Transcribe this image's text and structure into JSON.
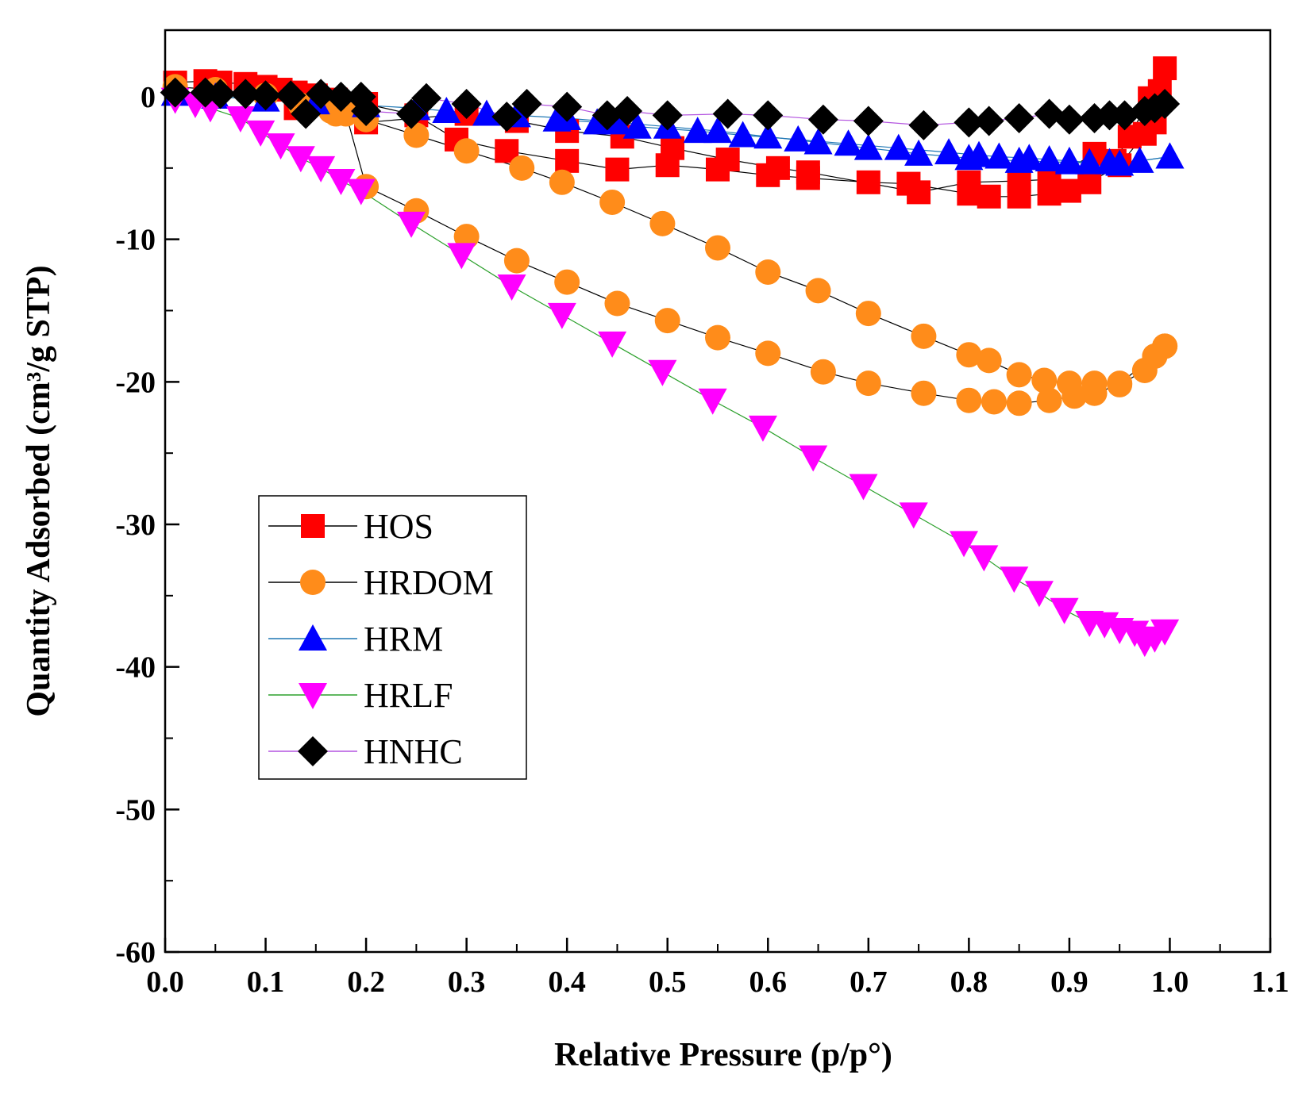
{
  "chart_data": {
    "type": "scatter",
    "title": "",
    "xlabel": "Relative Pressure (p/p°)",
    "ylabel": "Quantity Adsorbed (cm³/g STP)",
    "xlim": [
      0.0,
      1.1
    ],
    "ylim": [
      -60,
      5
    ],
    "x_ticks": [
      0.0,
      0.1,
      0.2,
      0.3,
      0.4,
      0.5,
      0.6,
      0.7,
      0.8,
      0.9,
      1.0,
      1.1
    ],
    "x_tick_labels": [
      "0.0",
      "0.1",
      "0.2",
      "0.3",
      "0.4",
      "0.5",
      "0.6",
      "0.7",
      "0.8",
      "0.9",
      "1.0",
      "1.1"
    ],
    "y_ticks": [
      0,
      -10,
      -20,
      -30,
      -40,
      -50,
      -60
    ],
    "y_tick_labels": [
      "0",
      "-10",
      "-20",
      "-30",
      "-40",
      "-50",
      "-60"
    ],
    "grid": false,
    "legend_position": "lower-left",
    "series": [
      {
        "name": "HOS",
        "marker": "square",
        "color": "#ff0000",
        "line_color": "#000000",
        "adsorption": {
          "x": [
            0.01,
            0.04,
            0.055,
            0.08,
            0.1,
            0.115,
            0.13,
            0.15,
            0.17,
            0.2,
            0.25,
            0.29,
            0.34,
            0.4,
            0.45,
            0.5,
            0.55,
            0.6,
            0.64,
            0.7,
            0.74,
            0.8,
            0.82,
            0.85,
            0.88,
            0.9,
            0.92,
            0.95,
            0.975,
            0.985,
            0.995
          ],
          "y": [
            1.0,
            1.1,
            1.0,
            0.9,
            0.7,
            0.5,
            0.3,
            0.1,
            -0.2,
            -0.5,
            -1.3,
            -3.0,
            -3.8,
            -4.5,
            -5.1,
            -4.8,
            -5.1,
            -5.5,
            -5.7,
            -6.0,
            -6.1,
            -6.8,
            -7.0,
            -7.0,
            -6.8,
            -6.6,
            -6.0,
            -4.8,
            -2.6,
            -1.8,
            2.0
          ]
        },
        "desorption": {
          "x": [
            0.99,
            0.98,
            0.96,
            0.945,
            0.925,
            0.88,
            0.85,
            0.8,
            0.75,
            0.64,
            0.61,
            0.56,
            0.505,
            0.455,
            0.4,
            0.35,
            0.3,
            0.2,
            0.13
          ],
          "y": [
            0.4,
            -0.1,
            -2.8,
            -4.5,
            -4.0,
            -5.8,
            -5.9,
            -6.0,
            -6.7,
            -5.3,
            -5.0,
            -4.4,
            -3.6,
            -2.8,
            -2.4,
            -1.7,
            -1.2,
            -1.8,
            -0.8
          ]
        }
      },
      {
        "name": "HRDOM",
        "marker": "circle",
        "color": "#ff8c1a",
        "line_color": "#000000",
        "adsorption": {
          "x": [
            0.01,
            0.05,
            0.1,
            0.135,
            0.165,
            0.18,
            0.2,
            0.25,
            0.3,
            0.35,
            0.4,
            0.45,
            0.5,
            0.55,
            0.6,
            0.655,
            0.7,
            0.755,
            0.8,
            0.825,
            0.85,
            0.88,
            0.905,
            0.925,
            0.95,
            0.975,
            0.985,
            0.995
          ],
          "y": [
            0.7,
            0.5,
            0.1,
            -0.6,
            -1.0,
            -1.2,
            -6.3,
            -8.0,
            -9.8,
            -11.5,
            -13.0,
            -14.5,
            -15.7,
            -16.9,
            -18.0,
            -19.3,
            -20.1,
            -20.8,
            -21.3,
            -21.4,
            -21.5,
            -21.3,
            -21.0,
            -20.8,
            -20.2,
            -19.2,
            -18.2,
            -17.5
          ]
        },
        "desorption": {
          "x": [
            0.995,
            0.985,
            0.95,
            0.925,
            0.9,
            0.875,
            0.85,
            0.82,
            0.8,
            0.755,
            0.7,
            0.65,
            0.6,
            0.55,
            0.495,
            0.445,
            0.395,
            0.355,
            0.3,
            0.25,
            0.2,
            0.17
          ],
          "y": [
            -17.5,
            -18.2,
            -20.1,
            -20.1,
            -20.1,
            -19.9,
            -19.5,
            -18.5,
            -18.1,
            -16.8,
            -15.2,
            -13.6,
            -12.3,
            -10.6,
            -8.9,
            -7.4,
            -6.0,
            -5.0,
            -3.8,
            -2.7,
            -1.6,
            -1.2
          ]
        }
      },
      {
        "name": "HRM",
        "marker": "triangle-up",
        "color": "#0000ff",
        "line_color": "#1f77b4",
        "adsorption": {
          "x": [
            0.01,
            0.05,
            0.1,
            0.15,
            0.2,
            0.25,
            0.28,
            0.32,
            0.35,
            0.4,
            0.45,
            0.5,
            0.55,
            0.6,
            0.65,
            0.7,
            0.75,
            0.8,
            0.85,
            0.9,
            0.95,
            1.0
          ],
          "y": [
            0.2,
            0.0,
            -0.2,
            -0.4,
            -0.6,
            -0.8,
            -1.0,
            -1.2,
            -1.3,
            -1.5,
            -1.8,
            -2.1,
            -2.4,
            -2.8,
            -3.2,
            -3.6,
            -4.0,
            -4.3,
            -4.5,
            -4.6,
            -4.7,
            -4.2
          ]
        },
        "desorption": {
          "x": [
            1.0,
            0.97,
            0.94,
            0.92,
            0.9,
            0.88,
            0.86,
            0.83,
            0.81,
            0.78,
            0.73,
            0.68,
            0.63,
            0.575,
            0.53,
            0.47,
            0.43,
            0.39
          ],
          "y": [
            -4.2,
            -4.5,
            -4.6,
            -4.6,
            -4.5,
            -4.4,
            -4.3,
            -4.2,
            -4.1,
            -3.9,
            -3.6,
            -3.3,
            -3.0,
            -2.7,
            -2.4,
            -2.1,
            -1.8,
            -1.6
          ]
        }
      },
      {
        "name": "HRLF",
        "marker": "triangle-down",
        "color": "#ff00ff",
        "line_color": "#2ca02c",
        "adsorption": {
          "x": [
            0.01,
            0.03,
            0.045,
            0.075,
            0.095,
            0.115,
            0.135,
            0.155,
            0.175,
            0.195,
            0.245,
            0.295,
            0.345,
            0.395,
            0.445,
            0.495,
            0.545,
            0.595,
            0.645,
            0.695,
            0.745,
            0.795,
            0.815,
            0.845,
            0.87,
            0.895,
            0.92,
            0.935,
            0.95,
            0.965,
            0.975,
            0.985,
            0.995
          ],
          "y": [
            -0.2,
            -0.5,
            -0.8,
            -1.5,
            -2.5,
            -3.4,
            -4.3,
            -5.0,
            -5.9,
            -6.6,
            -8.9,
            -11.1,
            -13.3,
            -15.3,
            -17.3,
            -19.3,
            -21.3,
            -23.2,
            -25.3,
            -27.3,
            -29.3,
            -31.3,
            -32.3,
            -33.8,
            -34.8,
            -36.0,
            -36.9,
            -37.0,
            -37.4,
            -37.6,
            -38.3,
            -38.0,
            -37.5
          ]
        },
        "desorption": {
          "x": [],
          "y": []
        }
      },
      {
        "name": "HNHC",
        "marker": "diamond",
        "color": "#000000",
        "line_color": "#b455e0",
        "adsorption": {
          "x": [
            0.01,
            0.04,
            0.055,
            0.08,
            0.1,
            0.125,
            0.14,
            0.155,
            0.175,
            0.195,
            0.2,
            0.245,
            0.26,
            0.3,
            0.34,
            0.36,
            0.4,
            0.44,
            0.46,
            0.5,
            0.56,
            0.6,
            0.655,
            0.7,
            0.755,
            0.8,
            0.82,
            0.85,
            0.88,
            0.9,
            0.925,
            0.94,
            0.955,
            0.975,
            0.985,
            0.995
          ],
          "y": [
            0.3,
            0.3,
            0.2,
            0.2,
            0.1,
            0.1,
            -1.2,
            0.2,
            0.0,
            0.0,
            -1.0,
            -1.2,
            -0.1,
            -0.5,
            -1.4,
            -0.5,
            -0.7,
            -1.3,
            -1.0,
            -1.3,
            -1.2,
            -1.3,
            -1.6,
            -1.7,
            -2.0,
            -1.8,
            -1.7,
            -1.5,
            -1.2,
            -1.6,
            -1.5,
            -1.3,
            -1.3,
            -1.0,
            -0.8,
            -0.5
          ]
        },
        "desorption": {
          "x": [],
          "y": []
        }
      }
    ]
  }
}
